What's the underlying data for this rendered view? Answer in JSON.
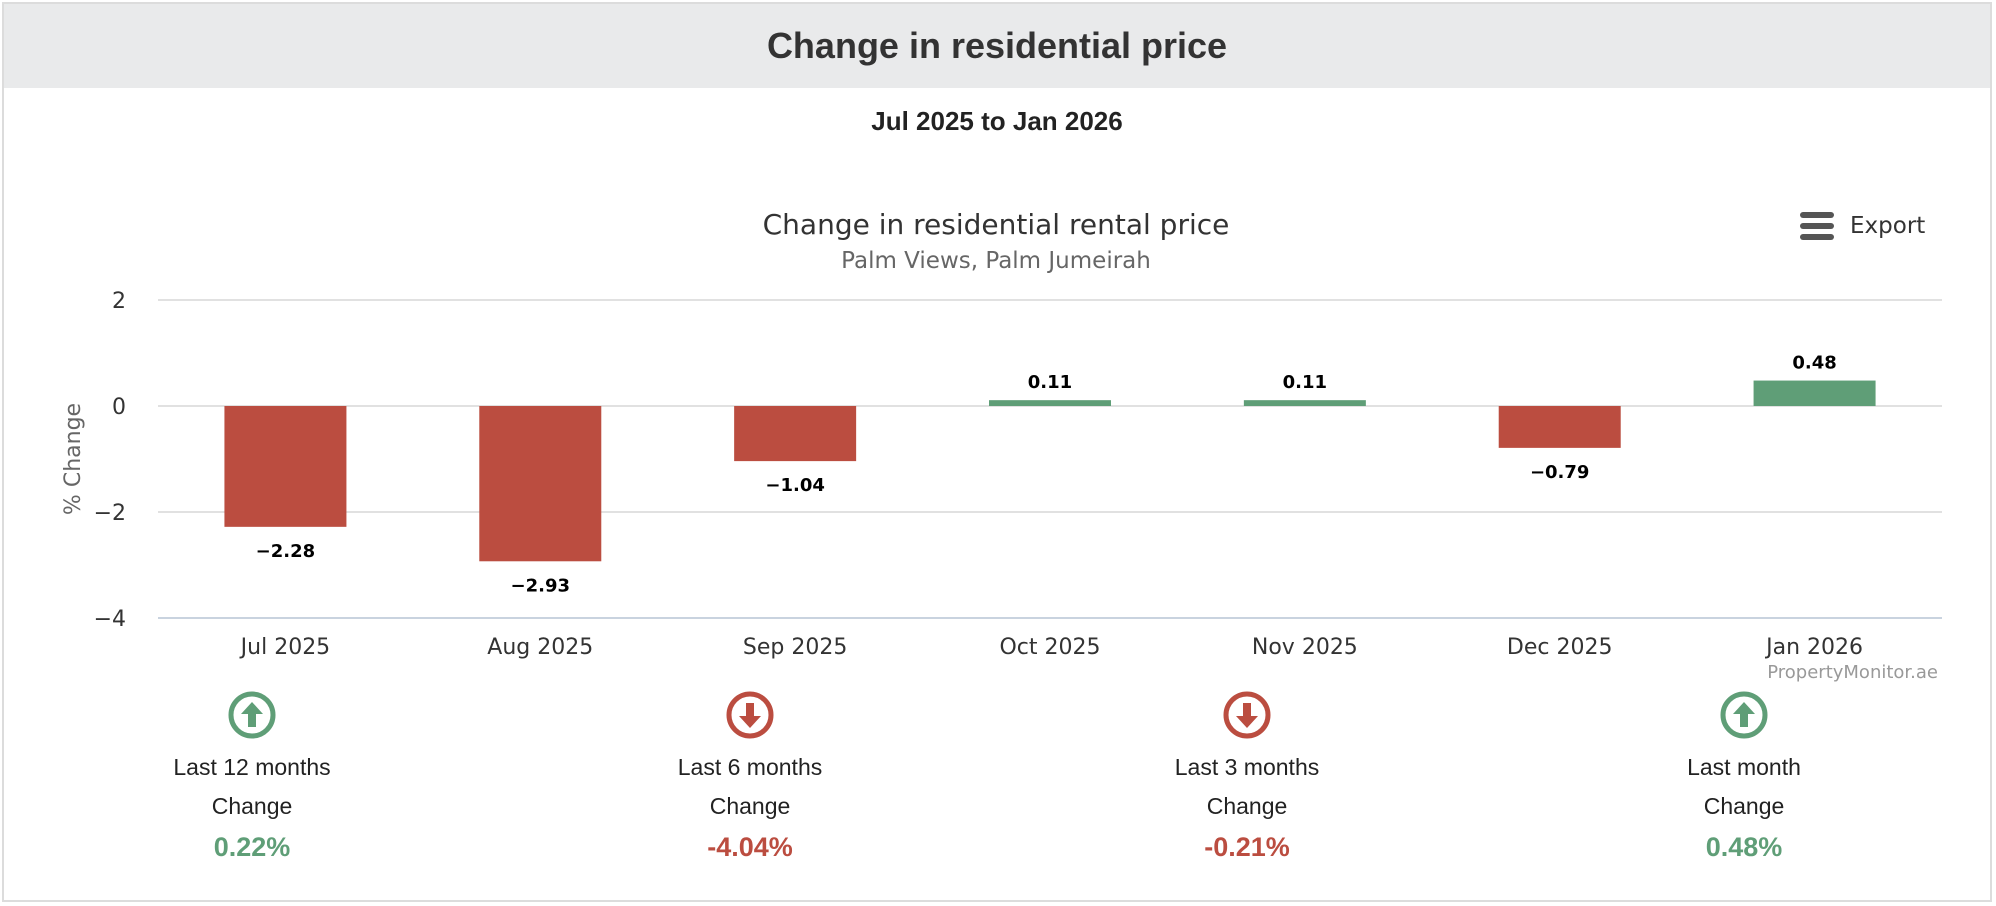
{
  "header": {
    "title": "Change in residential price"
  },
  "date_range": "Jul 2025 to Jan 2026",
  "export": {
    "label": "Export",
    "icon": "hamburger-menu-icon"
  },
  "colors": {
    "positive": "#5f9e77",
    "negative": "#bb4d40",
    "positive_text": "#5f9e77",
    "negative_text": "#bb4d40"
  },
  "chart_data": {
    "type": "bar",
    "title": "Change in residential rental price",
    "subtitle": "Palm Views, Palm Jumeirah",
    "xlabel": "",
    "ylabel": "% Change",
    "ylim": [
      -4,
      2
    ],
    "yticks": [
      2,
      0,
      -2,
      -4
    ],
    "grid": true,
    "legend": "none",
    "credit": "PropertyMonitor.ae",
    "categories": [
      "Jul 2025",
      "Aug 2025",
      "Sep 2025",
      "Oct 2025",
      "Nov 2025",
      "Dec 2025",
      "Jan 2026"
    ],
    "values": [
      -2.28,
      -2.93,
      -1.04,
      0.11,
      0.11,
      -0.79,
      0.48
    ],
    "value_labels": [
      "−2.28",
      "−2.93",
      "−1.04",
      "0.11",
      "0.11",
      "−0.79",
      "0.48"
    ],
    "ytick_labels": [
      "2",
      "0",
      "−2",
      "−4"
    ]
  },
  "stats": [
    {
      "period": "Last 12 months",
      "change_label": "Change",
      "value": "0.22%",
      "direction": "up",
      "icon": "arrow-up-circle-icon"
    },
    {
      "period": "Last 6 months",
      "change_label": "Change",
      "value": "-4.04%",
      "direction": "down",
      "icon": "arrow-down-circle-icon"
    },
    {
      "period": "Last 3 months",
      "change_label": "Change",
      "value": "-0.21%",
      "direction": "down",
      "icon": "arrow-down-circle-icon"
    },
    {
      "period": "Last month",
      "change_label": "Change",
      "value": "0.48%",
      "direction": "up",
      "icon": "arrow-up-circle-icon"
    }
  ]
}
